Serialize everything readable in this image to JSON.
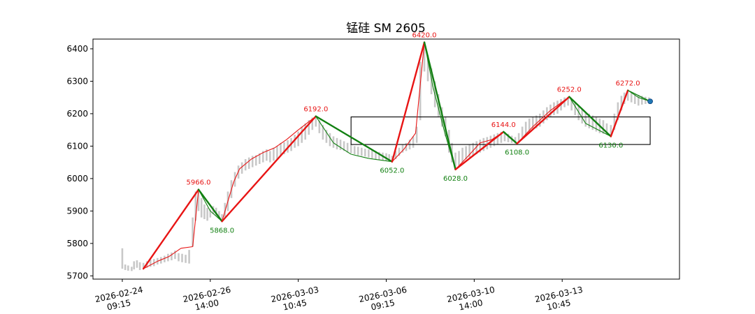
{
  "chart_data": {
    "type": "line",
    "title": "锰硅 SM 2605",
    "xlabel": "",
    "ylabel": "",
    "x_range": [
      0,
      100
    ],
    "ylim": [
      5690,
      6430
    ],
    "y_ticks": [
      5700,
      5800,
      5900,
      6000,
      6100,
      6200,
      6300,
      6400
    ],
    "x_ticks": [
      {
        "pos": 5,
        "line1": "2026-02-24",
        "line2": "09:15"
      },
      {
        "pos": 20,
        "line1": "2026-02-26",
        "line2": "14:00"
      },
      {
        "pos": 35,
        "line1": "2026-03-03",
        "line2": "10:45"
      },
      {
        "pos": 50,
        "line1": "2026-03-06",
        "line2": "09:15"
      },
      {
        "pos": 65,
        "line1": "2026-03-10",
        "line2": "14:00"
      },
      {
        "pos": 80,
        "line1": "2026-03-13",
        "line2": "10:45"
      }
    ],
    "colors": {
      "up": "#e81414",
      "down": "#118011",
      "bars": "#c8c8c8",
      "box": "#000000",
      "marker": "#1f77b4"
    },
    "pivots": [
      {
        "x": 8.6,
        "y": 5722,
        "label": "",
        "dir": "low"
      },
      {
        "x": 18.0,
        "y": 5966,
        "label": "5966.0",
        "dir": "high"
      },
      {
        "x": 22.0,
        "y": 5868,
        "label": "5868.0",
        "dir": "low"
      },
      {
        "x": 38.0,
        "y": 6192,
        "label": "6192.0",
        "dir": "high"
      },
      {
        "x": 51.0,
        "y": 6052,
        "label": "6052.0",
        "dir": "low"
      },
      {
        "x": 56.5,
        "y": 6420,
        "label": "6420.0",
        "dir": "high"
      },
      {
        "x": 61.8,
        "y": 6028,
        "label": "6028.0",
        "dir": "low"
      },
      {
        "x": 70.0,
        "y": 6144,
        "label": "6144.0",
        "dir": "high"
      },
      {
        "x": 72.3,
        "y": 6108,
        "label": "6108.0",
        "dir": "low"
      },
      {
        "x": 81.2,
        "y": 6252,
        "label": "6252.0",
        "dir": "high"
      },
      {
        "x": 88.3,
        "y": 6130,
        "label": "6130.0",
        "dir": "low"
      },
      {
        "x": 91.2,
        "y": 6272,
        "label": "6272.0",
        "dir": "high"
      },
      {
        "x": 95.0,
        "y": 6238,
        "label": "",
        "dir": "low"
      }
    ],
    "thin_path": [
      [
        8.6,
        5722
      ],
      [
        11,
        5745
      ],
      [
        13,
        5760
      ],
      [
        15,
        5785
      ],
      [
        17,
        5790
      ],
      [
        18.0,
        5966
      ],
      [
        20,
        5900
      ],
      [
        22.0,
        5868
      ],
      [
        23,
        5930
      ],
      [
        24,
        5990
      ],
      [
        25,
        6030
      ],
      [
        27,
        6060
      ],
      [
        29,
        6080
      ],
      [
        31,
        6095
      ],
      [
        33,
        6120
      ],
      [
        35,
        6150
      ],
      [
        38.0,
        6192
      ],
      [
        41,
        6110
      ],
      [
        44,
        6075
      ],
      [
        47,
        6062
      ],
      [
        51.0,
        6052
      ],
      [
        53,
        6090
      ],
      [
        55,
        6140
      ],
      [
        56.5,
        6420
      ],
      [
        58,
        6280
      ],
      [
        60,
        6140
      ],
      [
        61.8,
        6028
      ],
      [
        64,
        6070
      ],
      [
        66,
        6110
      ],
      [
        68,
        6120
      ],
      [
        70.0,
        6144
      ],
      [
        72.3,
        6108
      ],
      [
        75,
        6160
      ],
      [
        78,
        6210
      ],
      [
        81.2,
        6252
      ],
      [
        84,
        6170
      ],
      [
        88.3,
        6130
      ],
      [
        89.5,
        6190
      ],
      [
        91.2,
        6272
      ],
      [
        93,
        6250
      ],
      [
        95.0,
        6238
      ]
    ],
    "price_bars": [
      [
        5,
        5722,
        5785
      ],
      [
        5.5,
        5718,
        5735
      ],
      [
        6,
        5716,
        5732
      ],
      [
        6.6,
        5715,
        5728
      ],
      [
        7,
        5720,
        5745
      ],
      [
        7.5,
        5725,
        5748
      ],
      [
        8,
        5718,
        5742
      ],
      [
        8.6,
        5722,
        5740
      ],
      [
        9.2,
        5725,
        5745
      ],
      [
        9.8,
        5728,
        5750
      ],
      [
        10.4,
        5730,
        5752
      ],
      [
        11,
        5735,
        5755
      ],
      [
        11.6,
        5738,
        5758
      ],
      [
        12.2,
        5742,
        5762
      ],
      [
        12.8,
        5745,
        5768
      ],
      [
        13.4,
        5748,
        5772
      ],
      [
        14,
        5752,
        5778
      ],
      [
        14.6,
        5745,
        5770
      ],
      [
        15.2,
        5742,
        5768
      ],
      [
        15.8,
        5740,
        5765
      ],
      [
        16.4,
        5738,
        5780
      ],
      [
        17,
        5790,
        5880
      ],
      [
        17.5,
        5870,
        5960
      ],
      [
        18.0,
        5900,
        5966
      ],
      [
        18.5,
        5880,
        5940
      ],
      [
        19,
        5875,
        5920
      ],
      [
        19.5,
        5870,
        5910
      ],
      [
        20,
        5880,
        5905
      ],
      [
        20.5,
        5890,
        5915
      ],
      [
        21,
        5885,
        5910
      ],
      [
        21.5,
        5878,
        5900
      ],
      [
        22.0,
        5868,
        5890
      ],
      [
        22.5,
        5880,
        5925
      ],
      [
        23,
        5900,
        5960
      ],
      [
        23.6,
        5940,
        5995
      ],
      [
        24.2,
        5975,
        6020
      ],
      [
        24.8,
        6000,
        6040
      ],
      [
        25.4,
        6015,
        6050
      ],
      [
        26,
        6025,
        6060
      ],
      [
        26.6,
        6030,
        6065
      ],
      [
        27.2,
        6035,
        6070
      ],
      [
        27.8,
        6040,
        6072
      ],
      [
        28.4,
        6045,
        6078
      ],
      [
        29,
        6050,
        6085
      ],
      [
        29.6,
        6055,
        6090
      ],
      [
        30.2,
        6050,
        6085
      ],
      [
        30.8,
        6055,
        6095
      ],
      [
        31.4,
        6060,
        6100
      ],
      [
        32,
        6070,
        6110
      ],
      [
        32.6,
        6075,
        6112
      ],
      [
        33.2,
        6080,
        6118
      ],
      [
        33.8,
        6085,
        6125
      ],
      [
        34.4,
        6095,
        6135
      ],
      [
        35,
        6100,
        6145
      ],
      [
        35.6,
        6110,
        6160
      ],
      [
        36.2,
        6120,
        6170
      ],
      [
        36.8,
        6135,
        6180
      ],
      [
        37.4,
        6150,
        6188
      ],
      [
        38.0,
        6160,
        6192
      ],
      [
        38.6,
        6140,
        6180
      ],
      [
        39.2,
        6120,
        6165
      ],
      [
        39.8,
        6110,
        6150
      ],
      [
        40.4,
        6100,
        6140
      ],
      [
        41,
        6095,
        6130
      ],
      [
        41.6,
        6090,
        6125
      ],
      [
        42.2,
        6088,
        6120
      ],
      [
        42.8,
        6085,
        6115
      ],
      [
        43.4,
        6080,
        6110
      ],
      [
        44,
        6078,
        6105
      ],
      [
        44.6,
        6075,
        6100
      ],
      [
        45.2,
        6072,
        6098
      ],
      [
        45.8,
        6070,
        6095
      ],
      [
        46.4,
        6068,
        6092
      ],
      [
        47,
        6065,
        6090
      ],
      [
        47.6,
        6062,
        6088
      ],
      [
        48.2,
        6060,
        6085
      ],
      [
        48.8,
        6058,
        6082
      ],
      [
        49.4,
        6056,
        6080
      ],
      [
        50,
        6054,
        6078
      ],
      [
        50.5,
        6052,
        6075
      ],
      [
        51.0,
        6052,
        6070
      ],
      [
        51.6,
        6060,
        6085
      ],
      [
        52.2,
        6070,
        6095
      ],
      [
        52.8,
        6080,
        6105
      ],
      [
        53.4,
        6085,
        6110
      ],
      [
        54,
        6090,
        6120
      ],
      [
        54.6,
        6095,
        6130
      ],
      [
        55.2,
        6110,
        6160
      ],
      [
        55.8,
        6180,
        6360
      ],
      [
        56.5,
        6330,
        6420
      ],
      [
        57.1,
        6300,
        6380
      ],
      [
        57.7,
        6260,
        6340
      ],
      [
        58.3,
        6220,
        6300
      ],
      [
        58.9,
        6190,
        6260
      ],
      [
        59.5,
        6160,
        6220
      ],
      [
        60.1,
        6130,
        6190
      ],
      [
        60.7,
        6080,
        6150
      ],
      [
        61.2,
        6050,
        6110
      ],
      [
        61.8,
        6028,
        6080
      ],
      [
        62.4,
        6040,
        6085
      ],
      [
        63,
        6050,
        6095
      ],
      [
        63.6,
        6060,
        6100
      ],
      [
        64.2,
        6065,
        6105
      ],
      [
        64.8,
        6070,
        6110
      ],
      [
        65.4,
        6075,
        6115
      ],
      [
        66,
        6080,
        6120
      ],
      [
        66.6,
        6085,
        6125
      ],
      [
        67.2,
        6090,
        6128
      ],
      [
        67.8,
        6095,
        6132
      ],
      [
        68.4,
        6100,
        6136
      ],
      [
        69,
        6105,
        6140
      ],
      [
        69.6,
        6110,
        6144
      ],
      [
        70.2,
        6115,
        6144
      ],
      [
        70.8,
        6112,
        6138
      ],
      [
        71.4,
        6110,
        6132
      ],
      [
        72.0,
        6108,
        6128
      ],
      [
        72.6,
        6110,
        6140
      ],
      [
        73.2,
        6125,
        6160
      ],
      [
        73.8,
        6135,
        6175
      ],
      [
        74.4,
        6145,
        6185
      ],
      [
        75,
        6150,
        6190
      ],
      [
        75.6,
        6155,
        6195
      ],
      [
        76.2,
        6160,
        6200
      ],
      [
        76.8,
        6170,
        6210
      ],
      [
        77.4,
        6180,
        6220
      ],
      [
        78,
        6190,
        6228
      ],
      [
        78.6,
        6195,
        6235
      ],
      [
        79.2,
        6200,
        6240
      ],
      [
        79.8,
        6210,
        6245
      ],
      [
        80.4,
        6220,
        6250
      ],
      [
        81.0,
        6225,
        6252
      ],
      [
        81.6,
        6210,
        6245
      ],
      [
        82.2,
        6195,
        6235
      ],
      [
        82.8,
        6180,
        6225
      ],
      [
        83.4,
        6170,
        6215
      ],
      [
        84,
        6160,
        6205
      ],
      [
        84.6,
        6155,
        6200
      ],
      [
        85.2,
        6150,
        6195
      ],
      [
        85.8,
        6145,
        6190
      ],
      [
        86.4,
        6140,
        6185
      ],
      [
        87,
        6138,
        6180
      ],
      [
        87.6,
        6135,
        6170
      ],
      [
        88.3,
        6130,
        6165
      ],
      [
        88.9,
        6150,
        6200
      ],
      [
        89.5,
        6180,
        6235
      ],
      [
        90.1,
        6210,
        6255
      ],
      [
        90.6,
        6230,
        6265
      ],
      [
        91.2,
        6240,
        6272
      ],
      [
        91.8,
        6235,
        6265
      ],
      [
        92.4,
        6230,
        6260
      ],
      [
        93,
        6225,
        6258
      ],
      [
        93.6,
        6228,
        6255
      ],
      [
        94.2,
        6230,
        6252
      ],
      [
        94.8,
        6232,
        6250
      ]
    ],
    "box": {
      "x0": 44,
      "x1": 95,
      "y0": 6105,
      "y1": 6190
    }
  }
}
